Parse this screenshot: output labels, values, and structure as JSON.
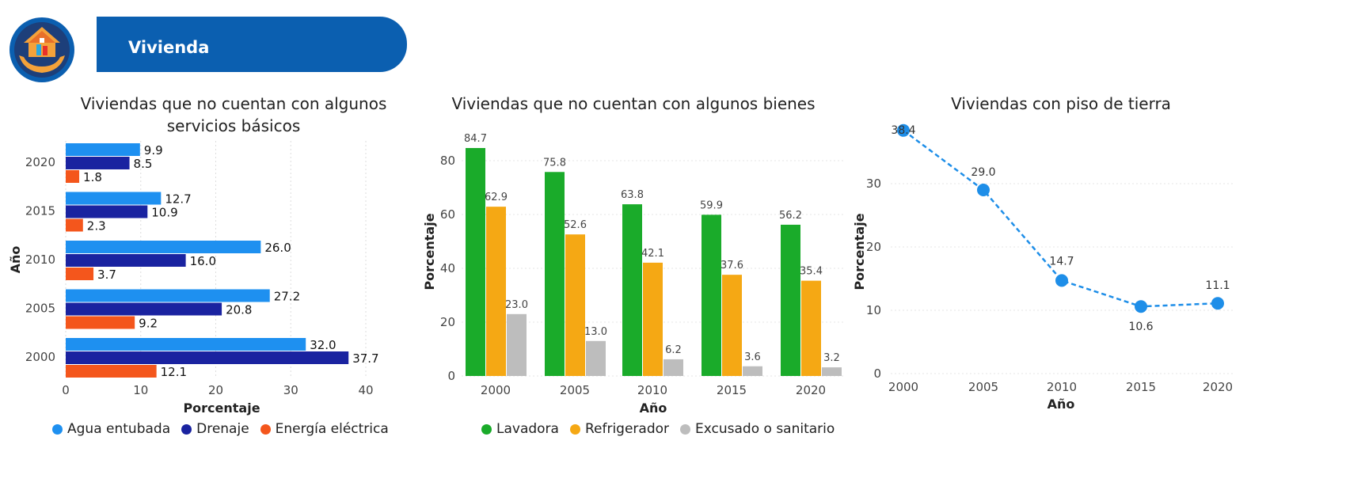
{
  "header": {
    "title": "Vivienda",
    "logo_icon": "house-hands-icon"
  },
  "colors": {
    "banner": "#0b5fb0",
    "agua": "#1e90f0",
    "drenaje": "#1a23a0",
    "energia": "#f4561c",
    "lavadora": "#1aab2a",
    "refrigerador": "#f5a814",
    "excusado": "#bdbdbd",
    "line": "#1e8ee8"
  },
  "chart_data": [
    {
      "type": "bar",
      "orientation": "horizontal",
      "title": "Viviendas que no cuentan con algunos servicios básicos",
      "xlabel": "Porcentaje",
      "ylabel": "Año",
      "categories": [
        "2020",
        "2015",
        "2010",
        "2005",
        "2000"
      ],
      "xlim": [
        0,
        40
      ],
      "xticks": [
        "0",
        "10",
        "20",
        "30",
        "40"
      ],
      "grid": true,
      "legend_position": "bottom",
      "series": [
        {
          "name": "Agua entubada",
          "values": [
            9.9,
            12.7,
            26.0,
            27.2,
            32.0
          ],
          "labels": [
            "9.9",
            "12.7",
            "26.0",
            "27.2",
            "32.0"
          ]
        },
        {
          "name": "Drenaje",
          "values": [
            8.5,
            10.9,
            16.0,
            20.8,
            37.7
          ],
          "labels": [
            "8.5",
            "10.9",
            "16.0",
            "20.8",
            "37.7"
          ]
        },
        {
          "name": "Energía eléctrica",
          "values": [
            1.8,
            2.3,
            3.7,
            9.2,
            12.1
          ],
          "labels": [
            "1.8",
            "2.3",
            "3.7",
            "9.2",
            "12.1"
          ]
        }
      ]
    },
    {
      "type": "bar",
      "orientation": "vertical",
      "title": "Viviendas que no cuentan con algunos bienes",
      "xlabel": "Año",
      "ylabel": "Porcentaje",
      "categories": [
        "2000",
        "2005",
        "2010",
        "2015",
        "2020"
      ],
      "ylim": [
        0,
        88
      ],
      "yticks": [
        "0",
        "20",
        "40",
        "60",
        "80"
      ],
      "grid": true,
      "legend_position": "bottom",
      "series": [
        {
          "name": "Lavadora",
          "values": [
            84.7,
            75.8,
            63.8,
            59.9,
            56.2
          ],
          "labels": [
            "84.7",
            "75.8",
            "63.8",
            "59.9",
            "56.2"
          ]
        },
        {
          "name": "Refrigerador",
          "values": [
            62.9,
            52.6,
            42.1,
            37.6,
            35.4
          ],
          "labels": [
            "62.9",
            "52.6",
            "42.1",
            "37.6",
            "35.4"
          ]
        },
        {
          "name": "Excusado o sanitario",
          "values": [
            23.0,
            13.0,
            6.2,
            3.6,
            3.2
          ],
          "labels": [
            "23.0",
            "13.0",
            "6.2",
            "3.6",
            "3.2"
          ]
        }
      ]
    },
    {
      "type": "line",
      "title": "Viviendas con piso de tierra",
      "xlabel": "Año",
      "ylabel": "Porcentaje",
      "x": [
        "2000",
        "2005",
        "2010",
        "2015",
        "2020"
      ],
      "ylim": [
        0,
        40
      ],
      "yticks": [
        "0",
        "10",
        "20",
        "30"
      ],
      "grid": true,
      "line_style": "dashed",
      "series": [
        {
          "values": [
            38.4,
            29.0,
            14.7,
            10.6,
            11.1
          ],
          "labels": [
            "38.4",
            "29.0",
            "14.7",
            "10.6",
            "11.1"
          ]
        }
      ]
    }
  ]
}
